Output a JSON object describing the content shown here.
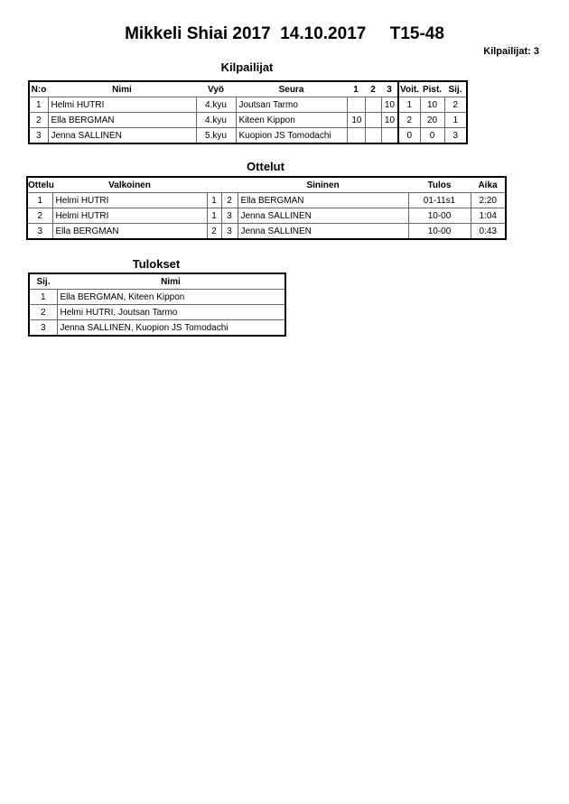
{
  "header": {
    "title": "Mikkeli Shiai 2017  14.10.2017     T15-48",
    "competitor_count": "Kilpailijat: 3"
  },
  "competitors": {
    "title": "Kilpailijat",
    "columns": [
      "N:o",
      "Nimi",
      "Vyö",
      "Seura",
      "1",
      "2",
      "3",
      "Voit.",
      "Pist.",
      "Sij."
    ],
    "rows": [
      [
        "1",
        "Helmi HUTRI",
        "4.kyu",
        "Joutsan Tarmo",
        "",
        "",
        "10",
        "1",
        "10",
        "2"
      ],
      [
        "2",
        "Ella BERGMAN",
        "4.kyu",
        "Kiteen Kippon",
        "10",
        "",
        "10",
        "2",
        "20",
        "1"
      ],
      [
        "3",
        "Jenna SALLINEN",
        "5.kyu",
        "Kuopion JS Tomodachi",
        "",
        "",
        "",
        "0",
        "0",
        "3"
      ]
    ]
  },
  "matches": {
    "title": "Ottelut",
    "columns": [
      "Ottelu",
      "Valkoinen",
      "",
      "",
      "Sininen",
      "Tulos",
      "Aika"
    ],
    "rows": [
      [
        "1",
        "Helmi HUTRI",
        "1",
        "2",
        "Ella BERGMAN",
        "01-11s1",
        "2:20"
      ],
      [
        "2",
        "Helmi HUTRI",
        "1",
        "3",
        "Jenna SALLINEN",
        "10-00",
        "1:04"
      ],
      [
        "3",
        "Ella BERGMAN",
        "2",
        "3",
        "Jenna SALLINEN",
        "10-00",
        "0:43"
      ]
    ]
  },
  "results": {
    "title": "Tulokset",
    "columns": [
      "Sij.",
      "Nimi"
    ],
    "rows": [
      [
        "1",
        "Ella BERGMAN, Kiteen Kippon"
      ],
      [
        "2",
        "Helmi HUTRI, Joutsan Tarmo"
      ],
      [
        "3",
        "Jenna SALLINEN, Kuopion JS Tomodachi"
      ]
    ]
  }
}
